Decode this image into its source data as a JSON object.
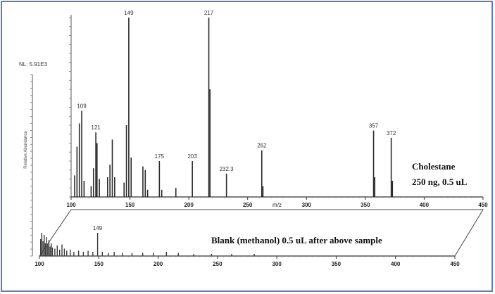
{
  "chart_data": [
    {
      "type": "bar",
      "name": "cholestane",
      "nl_label": "NL: 5.91E3",
      "ylabel": "Relative Abundance",
      "caption_line1": "Cholestane",
      "caption_line2": "250 ng, 0.5 uL",
      "xlim": [
        100,
        450
      ],
      "ylim": [
        0,
        100
      ],
      "x_ticks": [
        "100",
        "150",
        "200",
        "250",
        "300",
        "350",
        "400",
        "450"
      ],
      "peaks": [
        {
          "x": 103,
          "y": 12
        },
        {
          "x": 105,
          "y": 28
        },
        {
          "x": 107,
          "y": 41
        },
        {
          "x": 109,
          "y": 48
        },
        {
          "x": 111,
          "y": 9
        },
        {
          "x": 117,
          "y": 6
        },
        {
          "x": 119,
          "y": 16
        },
        {
          "x": 121,
          "y": 36
        },
        {
          "x": 122,
          "y": 30
        },
        {
          "x": 124,
          "y": 10
        },
        {
          "x": 131,
          "y": 11
        },
        {
          "x": 133,
          "y": 18
        },
        {
          "x": 135,
          "y": 32
        },
        {
          "x": 137,
          "y": 11
        },
        {
          "x": 145,
          "y": 8
        },
        {
          "x": 147,
          "y": 40
        },
        {
          "x": 149,
          "y": 100
        },
        {
          "x": 151,
          "y": 22
        },
        {
          "x": 161,
          "y": 17
        },
        {
          "x": 163,
          "y": 15
        },
        {
          "x": 165,
          "y": 4
        },
        {
          "x": 175,
          "y": 20
        },
        {
          "x": 177,
          "y": 4
        },
        {
          "x": 189,
          "y": 5
        },
        {
          "x": 203,
          "y": 20
        },
        {
          "x": 217,
          "y": 100
        },
        {
          "x": 218,
          "y": 60
        },
        {
          "x": 232,
          "y": 13
        },
        {
          "x": 262,
          "y": 26
        },
        {
          "x": 263,
          "y": 6
        },
        {
          "x": 357,
          "y": 37
        },
        {
          "x": 358,
          "y": 11
        },
        {
          "x": 372,
          "y": 33
        },
        {
          "x": 373,
          "y": 9
        }
      ],
      "peak_labels": [
        {
          "x": 109,
          "y": 48,
          "text": "109"
        },
        {
          "x": 121,
          "y": 36,
          "text": "121"
        },
        {
          "x": 149,
          "y": 100,
          "text": "149"
        },
        {
          "x": 175,
          "y": 20,
          "text": "175"
        },
        {
          "x": 203,
          "y": 20,
          "text": "203"
        },
        {
          "x": 217,
          "y": 100,
          "text": "217"
        },
        {
          "x": 232,
          "y": 13,
          "text": "232.3"
        },
        {
          "x": 262,
          "y": 26,
          "text": "262"
        },
        {
          "x": 357,
          "y": 37,
          "text": "357"
        },
        {
          "x": 372,
          "y": 33,
          "text": "372"
        }
      ],
      "extra_tick_label": {
        "x": 275,
        "text": "m/z"
      }
    },
    {
      "type": "bar",
      "name": "blank",
      "caption": "Blank (methanol) 0.5 uL after above sample",
      "xlim": [
        100,
        450
      ],
      "ylim": [
        0,
        100
      ],
      "x_ticks": [
        "100",
        "150",
        "200",
        "250",
        "300",
        "350",
        "400",
        "450"
      ],
      "peaks": [
        {
          "x": 101,
          "y": 16
        },
        {
          "x": 102,
          "y": 22
        },
        {
          "x": 103,
          "y": 14
        },
        {
          "x": 104,
          "y": 20
        },
        {
          "x": 105,
          "y": 12
        },
        {
          "x": 106,
          "y": 18
        },
        {
          "x": 107,
          "y": 11
        },
        {
          "x": 108,
          "y": 15
        },
        {
          "x": 109,
          "y": 9
        },
        {
          "x": 110,
          "y": 12
        },
        {
          "x": 111,
          "y": 8
        },
        {
          "x": 113,
          "y": 7
        },
        {
          "x": 115,
          "y": 10
        },
        {
          "x": 117,
          "y": 6
        },
        {
          "x": 119,
          "y": 11
        },
        {
          "x": 121,
          "y": 7
        },
        {
          "x": 123,
          "y": 5
        },
        {
          "x": 126,
          "y": 6
        },
        {
          "x": 129,
          "y": 4
        },
        {
          "x": 133,
          "y": 5
        },
        {
          "x": 137,
          "y": 4
        },
        {
          "x": 141,
          "y": 5
        },
        {
          "x": 145,
          "y": 4
        },
        {
          "x": 149,
          "y": 22
        },
        {
          "x": 153,
          "y": 4
        },
        {
          "x": 158,
          "y": 3
        },
        {
          "x": 163,
          "y": 4
        },
        {
          "x": 170,
          "y": 3
        },
        {
          "x": 178,
          "y": 3
        },
        {
          "x": 187,
          "y": 3
        },
        {
          "x": 196,
          "y": 3
        },
        {
          "x": 207,
          "y": 4
        },
        {
          "x": 217,
          "y": 3
        },
        {
          "x": 230,
          "y": 2
        },
        {
          "x": 245,
          "y": 2
        },
        {
          "x": 262,
          "y": 2
        },
        {
          "x": 281,
          "y": 2
        }
      ],
      "peak_labels": [
        {
          "x": 149,
          "y": 22,
          "text": "149"
        }
      ]
    }
  ]
}
